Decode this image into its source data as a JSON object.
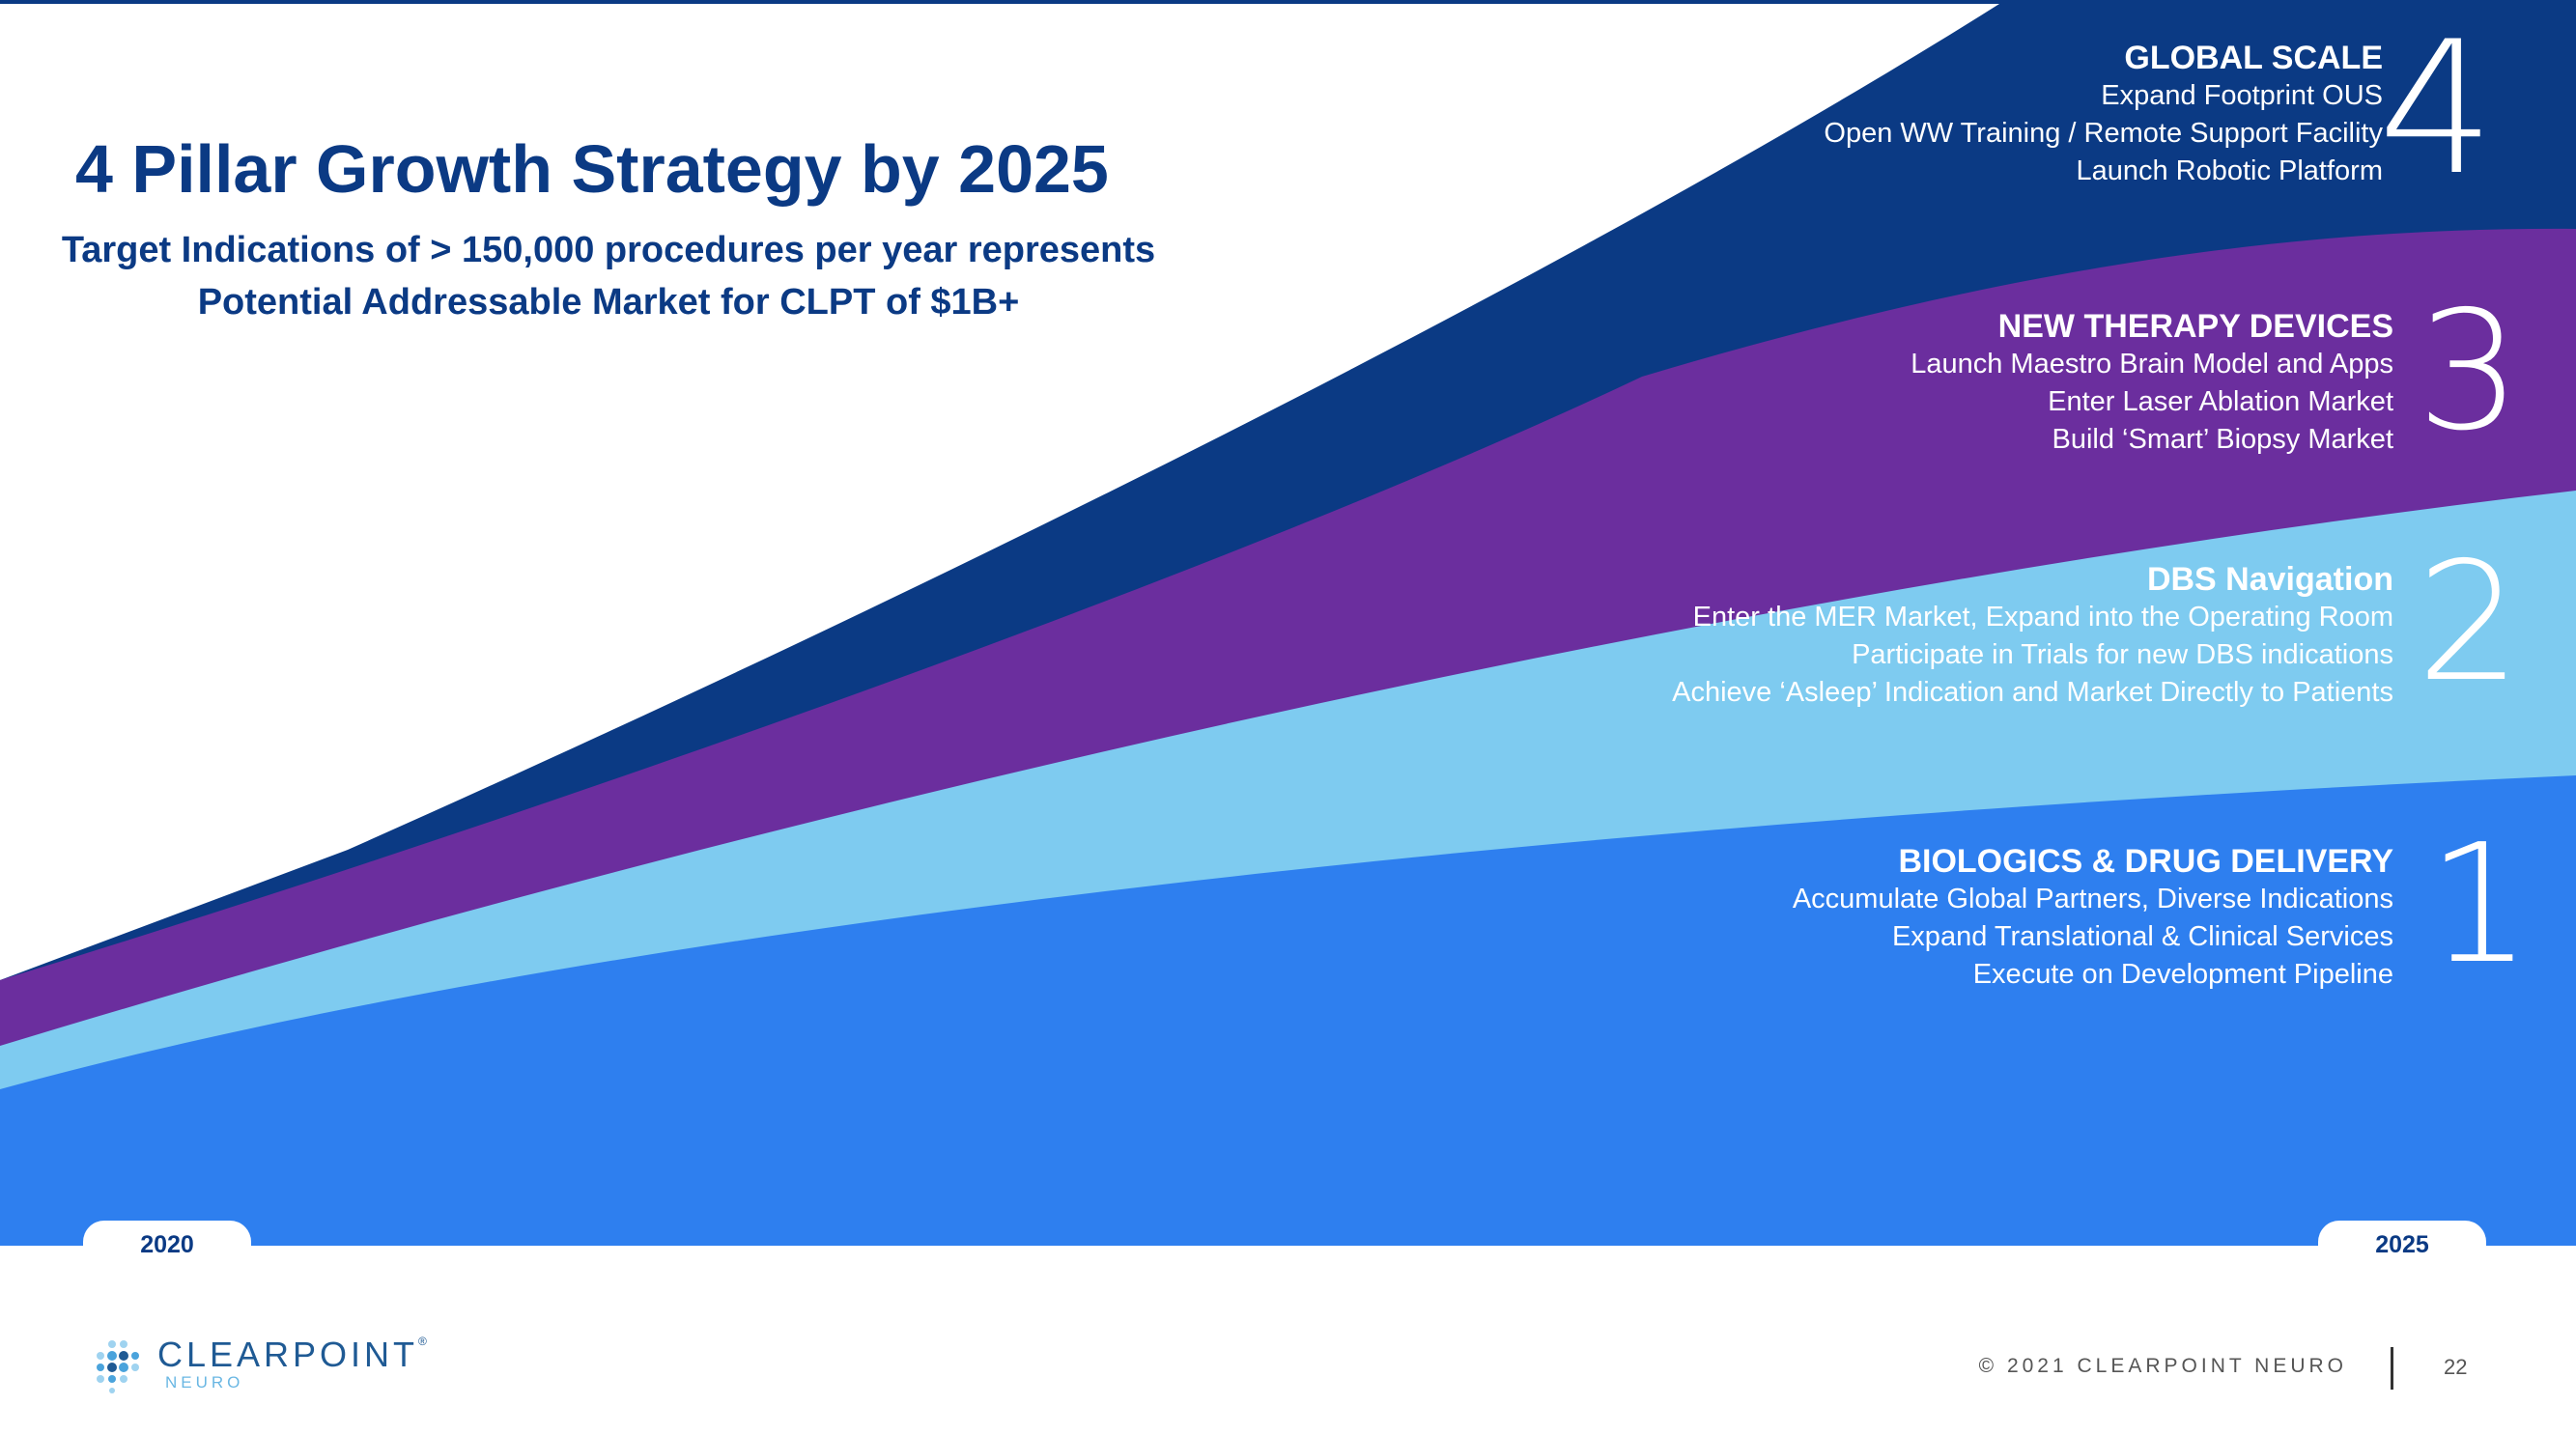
{
  "slide": {
    "title": "4 Pillar Growth Strategy by 2025",
    "subtitle_line1": "Target Indications of > 150,000 procedures per year represents",
    "subtitle_line2": "Potential Addressable Market for CLPT of $1B+"
  },
  "pillars": [
    {
      "number": "4",
      "heading": "GLOBAL SCALE",
      "lines": [
        "Expand Footprint OUS",
        "Open WW Training / Remote Support Facility",
        "Launch Robotic Platform"
      ],
      "color": "#0b3a84"
    },
    {
      "number": "3",
      "heading": "NEW THERAPY DEVICES",
      "lines": [
        "Launch Maestro Brain Model and Apps",
        "Enter Laser Ablation Market",
        "Build ‘Smart’ Biopsy Market"
      ],
      "color": "#6b2e9e"
    },
    {
      "number": "2",
      "heading": "DBS Navigation",
      "lines": [
        "Enter the MER Market, Expand into the Operating Room",
        "Participate in Trials for new DBS indications",
        "Achieve ‘Asleep’ Indication and Market Directly to Patients"
      ],
      "color": "#7ecbf0"
    },
    {
      "number": "1",
      "heading": "BIOLOGICS & DRUG DELIVERY",
      "lines": [
        "Accumulate Global Partners, Diverse Indications",
        "Expand Translational & Clinical Services",
        "Execute on Development Pipeline"
      ],
      "color": "#2e7fef"
    }
  ],
  "timeline": {
    "start": "2020",
    "end": "2025"
  },
  "logo": {
    "name": "CLEARPOINT",
    "trademark": "®",
    "sub": "NEURO"
  },
  "footer": {
    "copyright": "© 2021 CLEARPOINT NEURO",
    "page_number": "22"
  }
}
